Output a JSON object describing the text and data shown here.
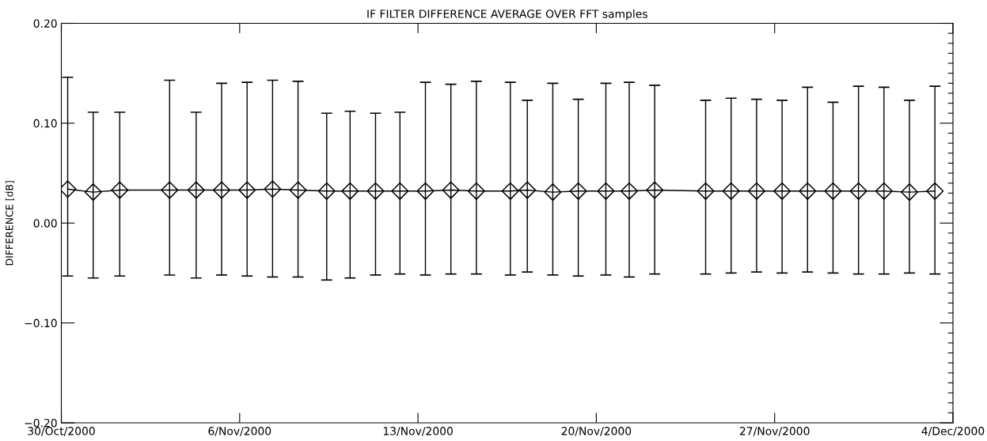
{
  "chart_data": {
    "type": "line",
    "title": "IF FILTER DIFFERENCE AVERAGE OVER FFT samples",
    "ylabel": "DIFFERENCE [dB]",
    "x": [
      "2000-10-30T06:00",
      "2000-10-31T06:00",
      "2000-11-01T07:00",
      "2000-11-03T06:00",
      "2000-11-04T07:00",
      "2000-11-05T07:00",
      "2000-11-06T07:00",
      "2000-11-07T07:00",
      "2000-11-08T07:00",
      "2000-11-09T10:00",
      "2000-11-10T08:00",
      "2000-11-11T08:00",
      "2000-11-12T07:00",
      "2000-11-13T07:00",
      "2000-11-14T07:00",
      "2000-11-15T07:00",
      "2000-11-16T15:00",
      "2000-11-17T07:00",
      "2000-11-18T07:00",
      "2000-11-19T07:00",
      "2000-11-20T09:00",
      "2000-11-21T07:00",
      "2000-11-22T07:00",
      "2000-11-24T07:00",
      "2000-11-25T07:00",
      "2000-11-26T07:00",
      "2000-11-27T07:00",
      "2000-11-28T07:00",
      "2000-11-29T07:00",
      "2000-11-30T07:00",
      "2000-12-01T07:00",
      "2000-12-02T07:00",
      "2000-12-03T07:00"
    ],
    "values": [
      0.034,
      0.031,
      0.033,
      0.033,
      0.033,
      0.033,
      0.033,
      0.034,
      0.033,
      0.032,
      0.032,
      0.032,
      0.032,
      0.032,
      0.033,
      0.032,
      0.032,
      0.033,
      0.031,
      0.032,
      0.032,
      0.032,
      0.033,
      0.032,
      0.032,
      0.032,
      0.032,
      0.032,
      0.032,
      0.032,
      0.032,
      0.031,
      0.032
    ],
    "errors": [
      [
        -0.053,
        0.146
      ],
      [
        -0.055,
        0.111
      ],
      [
        -0.053,
        0.111
      ],
      [
        -0.052,
        0.143
      ],
      [
        -0.055,
        0.111
      ],
      [
        -0.052,
        0.14
      ],
      [
        -0.053,
        0.141
      ],
      [
        -0.054,
        0.143
      ],
      [
        -0.054,
        0.142
      ],
      [
        -0.057,
        0.11
      ],
      [
        -0.055,
        0.112
      ],
      [
        -0.052,
        0.11
      ],
      [
        -0.051,
        0.111
      ],
      [
        -0.052,
        0.141
      ],
      [
        -0.051,
        0.139
      ],
      [
        -0.051,
        0.142
      ],
      [
        -0.052,
        0.141
      ],
      [
        -0.049,
        0.123
      ],
      [
        -0.052,
        0.14
      ],
      [
        -0.053,
        0.124
      ],
      [
        -0.052,
        0.14
      ],
      [
        -0.054,
        0.141
      ],
      [
        -0.051,
        0.138
      ],
      [
        -0.051,
        0.123
      ],
      [
        -0.05,
        0.125
      ],
      [
        -0.049,
        0.124
      ],
      [
        -0.05,
        0.123
      ],
      [
        -0.049,
        0.136
      ],
      [
        -0.05,
        0.121
      ],
      [
        -0.051,
        0.137
      ],
      [
        -0.051,
        0.136
      ],
      [
        -0.05,
        0.123
      ],
      [
        -0.051,
        0.137
      ]
    ],
    "color": "#000000",
    "marker": "diamond",
    "line_style": "solid",
    "xlim": [
      "2000-10-30",
      "2000-12-04"
    ],
    "xticks": [
      {
        "value": "2000-10-30",
        "label": "30/Oct/2000"
      },
      {
        "value": "2000-11-06",
        "label": "6/Nov/2000"
      },
      {
        "value": "2000-11-13",
        "label": "13/Nov/2000"
      },
      {
        "value": "2000-11-20",
        "label": "20/Nov/2000"
      },
      {
        "value": "2000-11-27",
        "label": "27/Nov/2000"
      },
      {
        "value": "2000-12-04",
        "label": "4/Dec/2000"
      }
    ],
    "ylim": [
      -0.2,
      0.2
    ],
    "yticks": [
      {
        "value": -0.2,
        "label": "−0.20"
      },
      {
        "value": -0.1,
        "label": "−0.10"
      },
      {
        "value": 0.0,
        "label": "0.00"
      },
      {
        "value": 0.1,
        "label": "0.10"
      },
      {
        "value": 0.2,
        "label": "0.20"
      }
    ],
    "grid": false,
    "legend": false
  }
}
